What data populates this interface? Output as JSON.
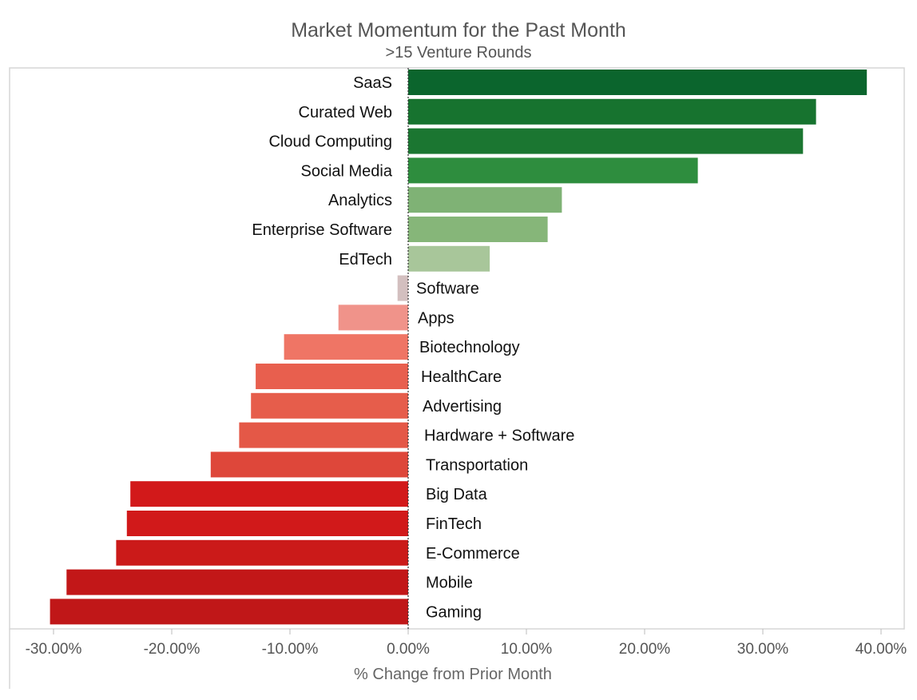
{
  "chart_data": {
    "type": "bar",
    "orientation": "horizontal",
    "title": "Market Momentum for the Past Month",
    "subtitle": ">15 Venture Rounds",
    "xlabel": "% Change from Prior Month",
    "ylabel": "",
    "xlim": [
      -30,
      40
    ],
    "grid": false,
    "ticks": [
      -30,
      -20,
      -10,
      0,
      10,
      20,
      30,
      40
    ],
    "tick_labels": [
      "-30.00%",
      "-20.00%",
      "-10.00%",
      "0.00%",
      "10.00%",
      "20.00%",
      "30.00%",
      "40.00%"
    ],
    "categories": [
      "SaaS",
      "Curated Web",
      "Cloud Computing",
      "Social Media",
      "Analytics",
      "Enterprise Software",
      "EdTech",
      "Software",
      "Apps",
      "Biotechnology",
      "HealthCare",
      "Advertising",
      "Hardware + Software",
      "Transportation",
      "Big Data",
      "FinTech",
      "E-Commerce",
      "Mobile",
      "Gaming"
    ],
    "values": [
      38.8,
      34.5,
      33.4,
      24.5,
      13.0,
      11.8,
      6.9,
      -0.9,
      -5.9,
      -10.5,
      -12.9,
      -13.3,
      -14.3,
      -16.7,
      -23.5,
      -23.8,
      -24.7,
      -28.9,
      -30.3
    ],
    "colors": [
      "#0b652d",
      "#17732f",
      "#1b7631",
      "#2e8d3e",
      "#7fb275",
      "#86b679",
      "#a8c69a",
      "#d3bfbf",
      "#f0938a",
      "#ef7565",
      "#e85f4e",
      "#e65d4b",
      "#e45847",
      "#de473a",
      "#d2191a",
      "#d1191a",
      "#cb1a19",
      "#c21718",
      "#c01718"
    ]
  }
}
